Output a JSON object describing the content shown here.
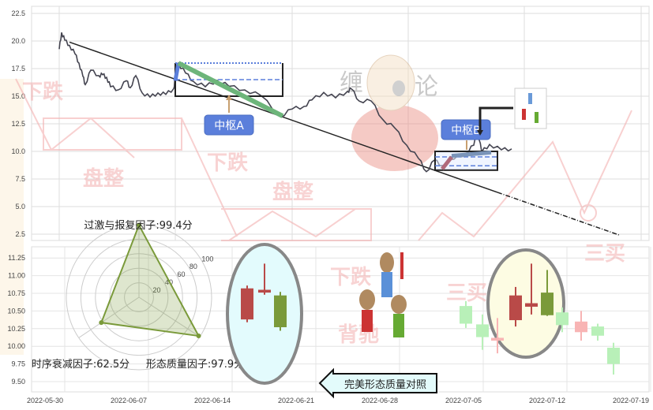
{
  "colors": {
    "price_line": "#444450",
    "trend_line": "#222222",
    "stroke_green": "#6db57a",
    "zhongshu_blue": "#5b7fdb",
    "candle_red": "#b94a48",
    "candle_green": "#7a9a3a",
    "faded_red": "#f8b4b4",
    "faded_green": "#b8f0b8",
    "radar": "#7a9a3a"
  },
  "watermarks": [
    "下跌",
    "盘整",
    "下跌",
    "盘整",
    "下跌",
    "三买",
    "背驰",
    "三买",
    "缠",
    "论"
  ],
  "zhongshu": {
    "a_label": "中枢A",
    "b_label": "中枢B"
  },
  "compare_button": "完美形态质量对照",
  "chart_data": [
    {
      "type": "line",
      "title": "",
      "y_ticks": [
        "22.5",
        "20.0",
        "17.5",
        "15.0",
        "12.5",
        "10.0",
        "7.5",
        "5.0",
        "2.5"
      ],
      "ylim": [
        1.5,
        23.5
      ],
      "grid": true,
      "series": [
        {
          "values": [
            19.07,
            20.71,
            20.14,
            19.79,
            18.71,
            18.0,
            16.93,
            15.86,
            17.29,
            16.93,
            17.14,
            16.57,
            15.86,
            15.71,
            16.21,
            15.71,
            16.93,
            15.5,
            14.79,
            15.29,
            15.29,
            15.5,
            16.57,
            18.0,
            17.29,
            16.21,
            15.86,
            16.57,
            15.71,
            15.5,
            15.14,
            13.36,
            13.71,
            14.07,
            14.79,
            15.14,
            14.79,
            15.5,
            15.86,
            14.43,
            14.57,
            13.0,
            11.93,
            10.5,
            9.43,
            8.36,
            9.07,
            8.71,
            9.43,
            9.64,
            10.5,
            11.93,
            10.14,
            10.5,
            10.14,
            10.36
          ]
        }
      ],
      "trend_line": {
        "from": 19.9,
        "to": 2.4
      },
      "zhongshu_a": {
        "high": 18.0,
        "low": 15.0,
        "mid": 16.5
      },
      "zhongshu_b": {
        "high": 10.0,
        "low": 8.3,
        "mid_high": 9.5,
        "mid_low": 8.7
      }
    },
    {
      "type": "radar",
      "axes": [
        {
          "label": "过激与报复因子:99.4分",
          "value": 99.4
        },
        {
          "label": "形态质量因子:97.9分",
          "value": 97.9
        },
        {
          "label": "时序衰减因子:62.5分",
          "value": 62.5
        }
      ],
      "ring_labels": [
        "20",
        "40",
        "60",
        "80",
        "100"
      ],
      "rmax": 100
    },
    {
      "type": "candlestick",
      "x_ticks": [
        "2022-05-30",
        "2022-06-07",
        "2022-06-14",
        "2022-06-21",
        "2022-06-28",
        "2022-07-05",
        "2022-07-12",
        "2022-07-19"
      ],
      "y_ticks": [
        "11.25",
        "11.00",
        "10.75",
        "10.50",
        "10.25",
        "10.00",
        "9.75",
        "9.50"
      ],
      "ylim": [
        9.4,
        11.4
      ],
      "candles": [
        {
          "group": "reference",
          "open": 10.38,
          "close": 10.82,
          "high": 10.86,
          "low": 10.34,
          "color": "red"
        },
        {
          "group": "reference",
          "open": 10.76,
          "close": 10.8,
          "high": 11.17,
          "low": 10.73,
          "color": "red"
        },
        {
          "group": "reference",
          "open": 10.72,
          "close": 10.27,
          "high": 10.77,
          "low": 10.22,
          "color": "green"
        },
        {
          "group": "actual",
          "open": 10.32,
          "close": 10.57,
          "high": 10.64,
          "low": 10.26,
          "color": "faded-green"
        },
        {
          "group": "actual",
          "open": 10.13,
          "close": 10.31,
          "high": 10.45,
          "low": 9.95,
          "color": "faded-green"
        },
        {
          "group": "actual",
          "open": 10.08,
          "close": 10.12,
          "high": 10.4,
          "low": 9.9,
          "color": "faded-red"
        },
        {
          "group": "actual",
          "open": 10.37,
          "close": 10.72,
          "high": 10.84,
          "low": 10.28,
          "color": "red"
        },
        {
          "group": "actual",
          "open": 10.56,
          "close": 10.61,
          "high": 11.17,
          "low": 10.45,
          "color": "red"
        },
        {
          "group": "actual",
          "open": 10.76,
          "close": 10.44,
          "high": 11.08,
          "low": 10.43,
          "color": "green"
        },
        {
          "group": "actual",
          "open": 10.48,
          "close": 10.3,
          "high": 10.55,
          "low": 10.2,
          "color": "faded-green"
        },
        {
          "group": "actual",
          "open": 10.2,
          "close": 10.35,
          "high": 10.5,
          "low": 10.08,
          "color": "faded-red"
        },
        {
          "group": "actual",
          "open": 10.28,
          "close": 10.15,
          "high": 10.32,
          "low": 10.08,
          "color": "faded-green"
        },
        {
          "group": "actual",
          "open": 9.98,
          "close": 9.75,
          "high": 10.05,
          "low": 9.6,
          "color": "faded-green"
        }
      ]
    }
  ]
}
